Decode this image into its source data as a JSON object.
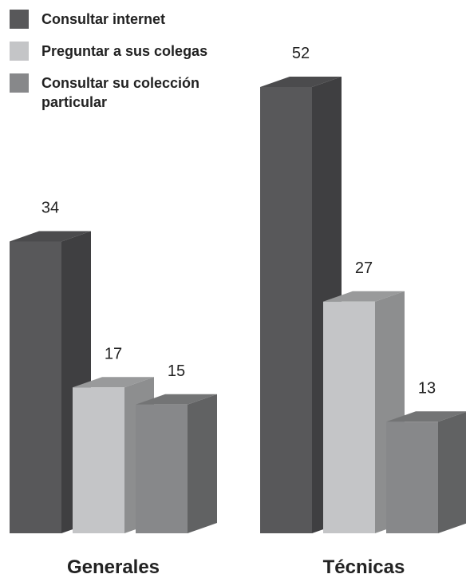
{
  "chart_data": {
    "type": "bar3d",
    "categories": [
      "Generales",
      "Técnicas"
    ],
    "series": [
      {
        "name": "Consultar internet",
        "color": "#58585a",
        "values": [
          34,
          52
        ]
      },
      {
        "name": "Preguntar a sus colegas",
        "color": "#c4c5c7",
        "values": [
          17,
          27
        ]
      },
      {
        "name": "Consultar su colección particular",
        "color": "#87888a",
        "values": [
          15,
          13
        ]
      }
    ]
  }
}
